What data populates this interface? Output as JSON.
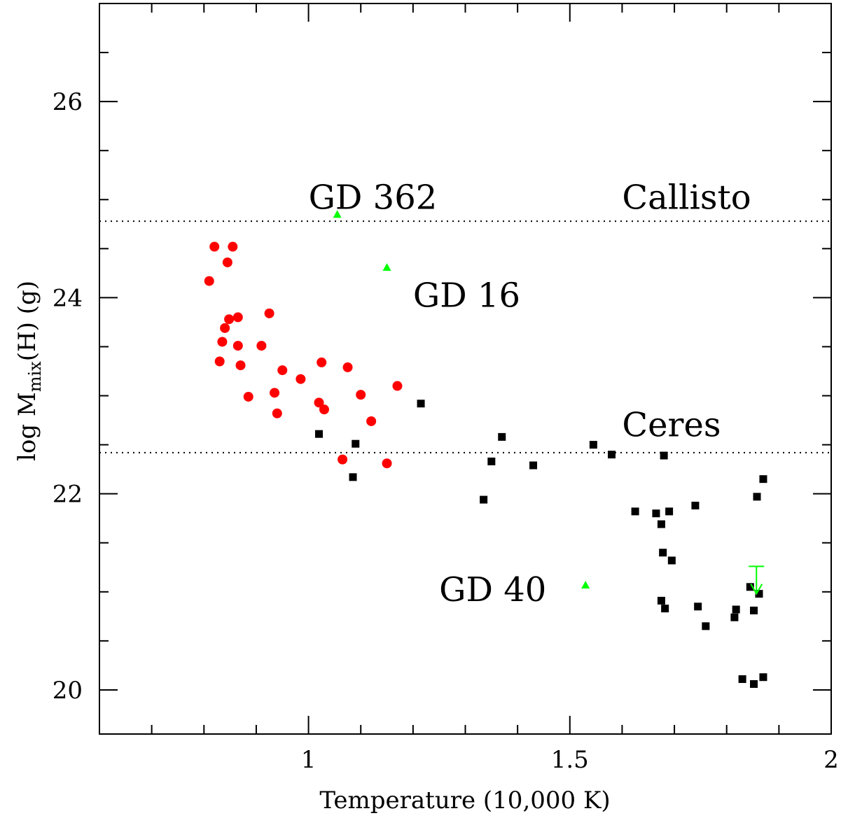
{
  "chart_data": {
    "type": "scatter",
    "xlabel": "Temperature (10,000 K)",
    "ylabel_main": "log M",
    "ylabel_sub": "mix",
    "ylabel_tail": "(H) (g)",
    "xlim": [
      0.6,
      2.0
    ],
    "ylim": [
      19.55,
      27.0
    ],
    "x_ticks": [
      1,
      1.5,
      2
    ],
    "x_tick_labels": [
      "1",
      "1.5",
      "2"
    ],
    "y_ticks": [
      20,
      22,
      24,
      26
    ],
    "y_tick_labels": [
      "20",
      "22",
      "24",
      "26"
    ],
    "x_minor_step": 0.1,
    "y_minor_step": 0.5,
    "reference_lines": [
      {
        "label": "Callisto",
        "y": 24.78,
        "label_x": 1.6,
        "label_y": 25.02
      },
      {
        "label": "Ceres",
        "y": 22.42,
        "label_x": 1.6,
        "label_y": 22.7
      }
    ],
    "annotations": [
      {
        "text": "GD 362",
        "x": 1.0,
        "y": 25.02
      },
      {
        "text": "GD 16",
        "x": 1.2,
        "y": 24.02
      },
      {
        "text": "GD 40",
        "x": 1.25,
        "y": 21.02
      }
    ],
    "series": [
      {
        "marker": "circle",
        "color": "#ff0000",
        "points": [
          [
            0.81,
            24.17
          ],
          [
            0.82,
            24.52
          ],
          [
            0.855,
            24.52
          ],
          [
            0.845,
            24.36
          ],
          [
            0.83,
            23.35
          ],
          [
            0.835,
            23.55
          ],
          [
            0.84,
            23.69
          ],
          [
            0.848,
            23.78
          ],
          [
            0.865,
            23.8
          ],
          [
            0.865,
            23.51
          ],
          [
            0.87,
            23.31
          ],
          [
            0.885,
            22.99
          ],
          [
            0.91,
            23.51
          ],
          [
            0.925,
            23.84
          ],
          [
            0.935,
            23.03
          ],
          [
            0.94,
            22.82
          ],
          [
            0.95,
            23.26
          ],
          [
            0.985,
            23.17
          ],
          [
            1.02,
            22.93
          ],
          [
            1.025,
            23.34
          ],
          [
            1.03,
            22.86
          ],
          [
            1.065,
            22.35
          ],
          [
            1.075,
            23.29
          ],
          [
            1.1,
            23.01
          ],
          [
            1.12,
            22.74
          ],
          [
            1.15,
            22.31
          ],
          [
            1.17,
            23.1
          ]
        ]
      },
      {
        "marker": "square",
        "color": "#000000",
        "points": [
          [
            1.02,
            22.61
          ],
          [
            1.085,
            22.17
          ],
          [
            1.09,
            22.51
          ],
          [
            1.215,
            22.92
          ],
          [
            1.335,
            21.94
          ],
          [
            1.35,
            22.33
          ],
          [
            1.37,
            22.58
          ],
          [
            1.43,
            22.29
          ],
          [
            1.545,
            22.5
          ],
          [
            1.58,
            22.4
          ],
          [
            1.625,
            21.82
          ],
          [
            1.665,
            21.8
          ],
          [
            1.675,
            21.69
          ],
          [
            1.675,
            20.91
          ],
          [
            1.678,
            21.4
          ],
          [
            1.68,
            22.39
          ],
          [
            1.682,
            20.83
          ],
          [
            1.69,
            21.82
          ],
          [
            1.695,
            21.32
          ],
          [
            1.74,
            21.88
          ],
          [
            1.745,
            20.85
          ],
          [
            1.76,
            20.65
          ],
          [
            1.815,
            20.74
          ],
          [
            1.818,
            20.82
          ],
          [
            1.83,
            20.11
          ],
          [
            1.845,
            21.05
          ],
          [
            1.852,
            20.06
          ],
          [
            1.852,
            20.81
          ],
          [
            1.858,
            21.97
          ],
          [
            1.862,
            20.98
          ],
          [
            1.87,
            22.15
          ],
          [
            1.87,
            20.13
          ]
        ]
      },
      {
        "marker": "triangle",
        "color": "#00ff00",
        "points": [
          [
            1.055,
            24.85
          ],
          [
            1.15,
            24.31
          ],
          [
            1.53,
            21.07
          ]
        ]
      }
    ],
    "upper_limits": [
      {
        "x": 1.857,
        "y_top": 21.26,
        "y_bottom": 20.98,
        "color": "#00ff00"
      }
    ]
  }
}
